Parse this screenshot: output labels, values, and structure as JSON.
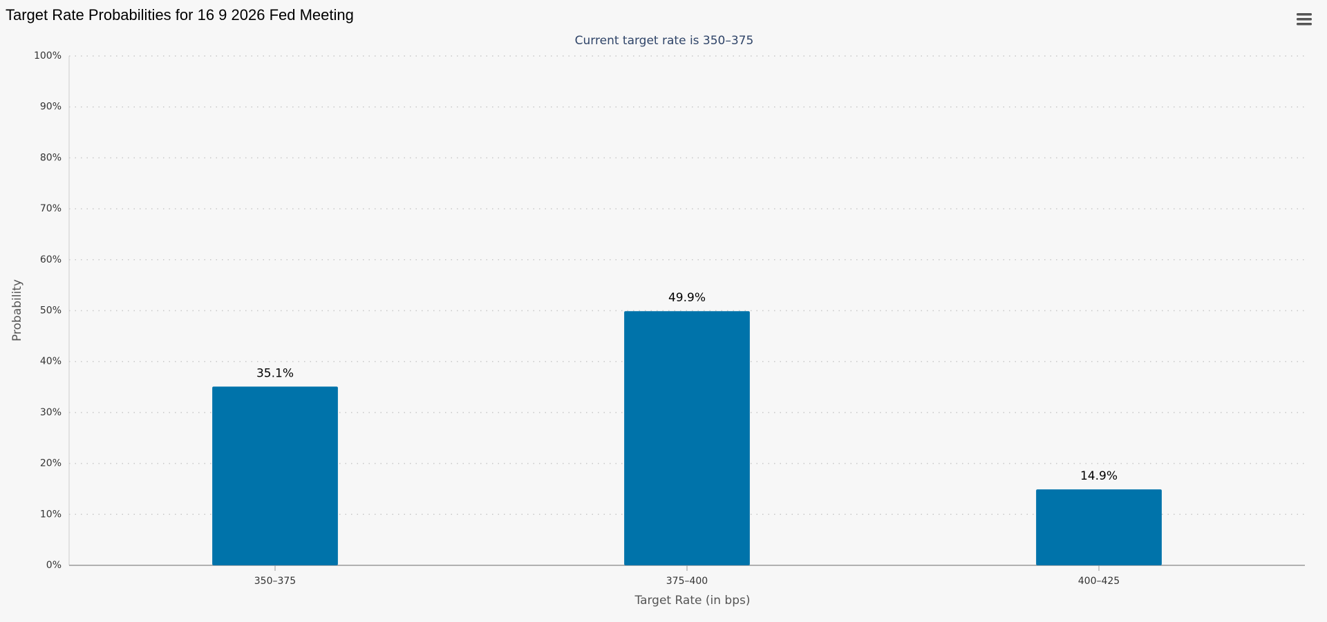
{
  "chart_data": {
    "type": "bar",
    "title": "Target Rate Probabilities for 16 9 2026 Fed Meeting",
    "subtitle": "Current target rate is 350–375",
    "y_label": "Probability",
    "x_label": "Target Rate (in bps)",
    "categories": [
      "350–375",
      "375–400",
      "400–425"
    ],
    "values": [
      35.1,
      49.9,
      14.9
    ],
    "value_labels": [
      "35.1%",
      "49.9%",
      "14.9%"
    ],
    "color": "#0073aa",
    "ylim": [
      0,
      100
    ],
    "yticks": [
      {
        "value": 0,
        "label": "0%"
      },
      {
        "value": 10,
        "label": "10%"
      },
      {
        "value": 20,
        "label": "20%"
      },
      {
        "value": 30,
        "label": "30%"
      },
      {
        "value": 40,
        "label": "40%"
      },
      {
        "value": 50,
        "label": "50%"
      },
      {
        "value": 60,
        "label": "60%"
      },
      {
        "value": 70,
        "label": "70%"
      },
      {
        "value": 80,
        "label": "80%"
      },
      {
        "value": 90,
        "label": "90%"
      },
      {
        "value": 100,
        "label": "100%"
      }
    ],
    "grid": true
  }
}
